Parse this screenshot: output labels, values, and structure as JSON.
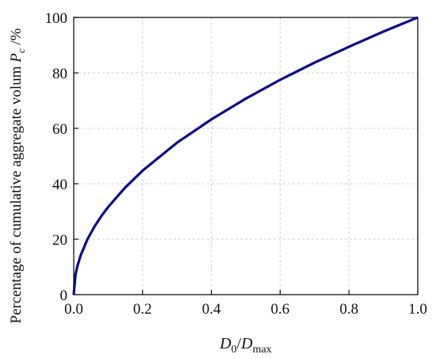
{
  "chart_data": {
    "type": "line",
    "x_label_parts": [
      "D",
      "0",
      "/",
      "D",
      "max"
    ],
    "y_label_parts": [
      "Percentage of cumulative aggregate volum ",
      "P",
      "c",
      " /%"
    ],
    "series": [
      {
        "color": "#0a0a8c",
        "x": [
          0,
          0.005,
          0.01,
          0.02,
          0.04,
          0.06,
          0.08,
          0.1,
          0.15,
          0.2,
          0.3,
          0.4,
          0.5,
          0.6,
          0.7,
          0.8,
          0.9,
          1.0
        ],
        "values": [
          0,
          7.1,
          10,
          14.1,
          20,
          24.5,
          28.3,
          31.6,
          38.7,
          44.7,
          54.8,
          63.2,
          70.7,
          77.5,
          83.7,
          89.4,
          94.9,
          100
        ]
      }
    ],
    "xlim": [
      0,
      1.0
    ],
    "ylim": [
      0,
      100
    ],
    "xticks": [
      {
        "value": 0,
        "label": "0.0"
      },
      0.2,
      0.4,
      0.6,
      0.8,
      {
        "value": 1,
        "label": "1.0"
      }
    ],
    "yticks": [
      0,
      20,
      40,
      60,
      80,
      100
    ],
    "grid": true
  }
}
